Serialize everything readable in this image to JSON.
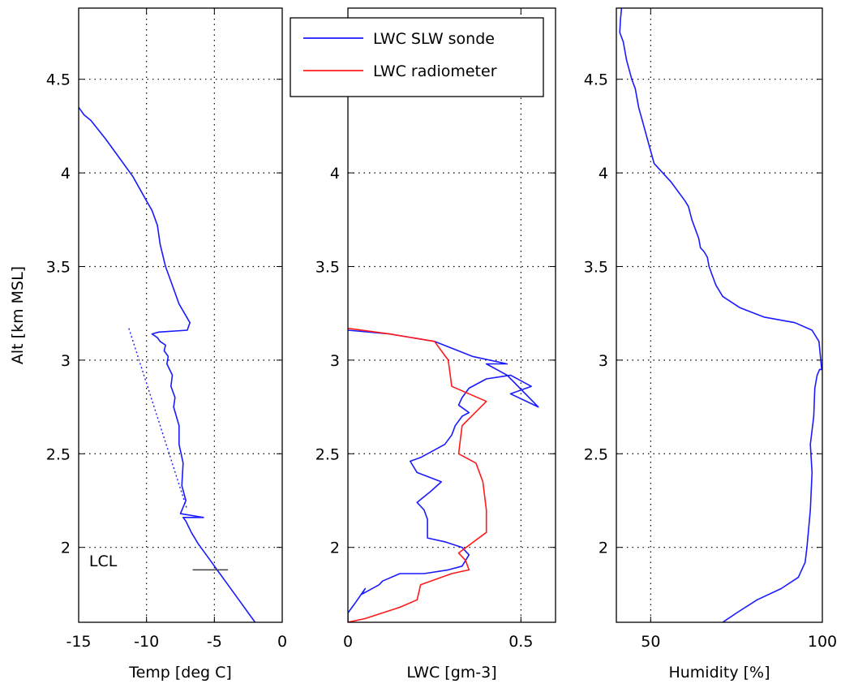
{
  "chart_data": [
    {
      "type": "line",
      "xlabel": "Temp [deg C]",
      "ylabel": "Alt [km MSL]",
      "xlim": [
        -15,
        0
      ],
      "ylim": [
        1.6,
        4.88
      ],
      "xticks": [
        "-15",
        "-10",
        "-5",
        "0"
      ],
      "xtick_values": [
        -15,
        -10,
        -5,
        0
      ],
      "yticks": [
        "2",
        "2.5",
        "3",
        "3.5",
        "4",
        "4.5"
      ],
      "ytick_values": [
        2,
        2.5,
        3,
        3.5,
        4,
        4.5
      ],
      "grid": true,
      "series": [
        {
          "style": "solid",
          "color": "#1a1aff",
          "x": [
            -2.0,
            -2.5,
            -3.2,
            -4.0,
            -4.8,
            -5.5,
            -6.2,
            -6.7,
            -7.1,
            -7.3,
            -5.8,
            -7.5,
            -7.1,
            -7.4,
            -7.3,
            -7.6,
            -7.6,
            -8.0,
            -7.9,
            -8.2,
            -8.1,
            -8.5,
            -8.4,
            -8.7,
            -8.6,
            -9.0,
            -9.2,
            -9.6,
            -9.1,
            -7.0,
            -6.8,
            -7.2,
            -7.6,
            -8.1,
            -8.6,
            -9.0,
            -9.2,
            -9.6,
            -10.0,
            -11.0,
            -12.0,
            -13.0,
            -14.1,
            -14.6,
            -15.0
          ],
          "y": [
            1.6,
            1.65,
            1.72,
            1.8,
            1.88,
            1.95,
            2.02,
            2.08,
            2.14,
            2.16,
            2.16,
            2.18,
            2.25,
            2.33,
            2.45,
            2.55,
            2.65,
            2.75,
            2.8,
            2.86,
            2.92,
            2.98,
            3.02,
            3.05,
            3.08,
            3.1,
            3.12,
            3.14,
            3.15,
            3.16,
            3.2,
            3.25,
            3.3,
            3.4,
            3.5,
            3.62,
            3.72,
            3.8,
            3.85,
            3.98,
            4.08,
            4.18,
            4.28,
            4.31,
            4.35
          ]
        },
        {
          "style": "dotted",
          "color": "#1a1aff",
          "x": [
            -11.3,
            -7.0
          ],
          "y": [
            3.17,
            2.2
          ]
        }
      ],
      "annotations": [
        {
          "text": "LCL",
          "x": -13.2,
          "y": 1.93
        },
        {
          "type": "segment",
          "x": [
            -6.6,
            -4.0
          ],
          "y": [
            1.88,
            1.88
          ],
          "color": "#404040"
        }
      ]
    },
    {
      "type": "line",
      "xlabel": "LWC [gm-3]",
      "ylabel": "",
      "xlim": [
        0,
        0.6
      ],
      "ylim": [
        1.6,
        4.88
      ],
      "xticks": [
        "0",
        "0.5"
      ],
      "xtick_values": [
        0,
        0.5
      ],
      "yticks": [
        "2",
        "2.5",
        "3",
        "3.5",
        "4"
      ],
      "ytick_values": [
        2,
        2.5,
        3,
        3.5,
        4
      ],
      "grid": true,
      "legend": {
        "position": "top-left",
        "entries": [
          "LWC SLW sonde",
          "LWC radiometer"
        ]
      },
      "series": [
        {
          "name": "LWC SLW sonde",
          "color": "#1a1aff",
          "x": [
            0.0,
            0.0,
            0.02,
            0.05,
            0.04,
            0.09,
            0.1,
            0.15,
            0.22,
            0.29,
            0.33,
            0.35,
            0.33,
            0.28,
            0.23,
            0.23,
            0.22,
            0.2,
            0.24,
            0.27,
            0.2,
            0.18,
            0.21,
            0.25,
            0.28,
            0.3,
            0.31,
            0.33,
            0.35,
            0.32,
            0.33,
            0.35,
            0.4,
            0.47,
            0.53,
            0.47,
            0.55,
            0.46,
            0.4,
            0.46,
            0.36,
            0.25,
            0.12,
            0.0
          ],
          "y": [
            1.6,
            1.65,
            1.7,
            1.78,
            1.75,
            1.8,
            1.82,
            1.86,
            1.86,
            1.88,
            1.9,
            1.96,
            2.0,
            2.03,
            2.05,
            2.15,
            2.2,
            2.24,
            2.3,
            2.35,
            2.4,
            2.46,
            2.48,
            2.52,
            2.55,
            2.6,
            2.65,
            2.7,
            2.72,
            2.76,
            2.8,
            2.85,
            2.9,
            2.92,
            2.86,
            2.82,
            2.75,
            2.92,
            2.98,
            2.98,
            3.02,
            3.1,
            3.14,
            3.16
          ]
        },
        {
          "name": "LWC radiometer",
          "color": "#ff1a1a",
          "x": [
            0.0,
            0.05,
            0.15,
            0.2,
            0.21,
            0.3,
            0.35,
            0.34,
            0.32,
            0.4,
            0.4,
            0.39,
            0.37,
            0.32,
            0.33,
            0.4,
            0.3,
            0.29,
            0.25,
            0.12,
            0.0
          ],
          "y": [
            1.6,
            1.62,
            1.68,
            1.72,
            1.8,
            1.86,
            1.88,
            1.93,
            1.97,
            2.08,
            2.2,
            2.35,
            2.45,
            2.5,
            2.65,
            2.78,
            2.86,
            3.0,
            3.1,
            3.14,
            3.17
          ]
        }
      ]
    },
    {
      "type": "line",
      "xlabel": "Humidity [%]",
      "ylabel": "",
      "xlim": [
        40,
        100
      ],
      "ylim": [
        1.6,
        4.88
      ],
      "xticks": [
        "50",
        "100"
      ],
      "xtick_values": [
        50,
        100
      ],
      "yticks": [
        "2",
        "2.5",
        "3",
        "3.5",
        "4",
        "4.5"
      ],
      "ytick_values": [
        2,
        2.5,
        3,
        3.5,
        4,
        4.5
      ],
      "grid": true,
      "series": [
        {
          "color": "#1a1aff",
          "x": [
            71,
            75,
            81,
            88,
            93,
            95,
            95.5,
            96.5,
            97,
            96.5,
            97.5,
            97.8,
            98.5,
            99.2,
            99.8,
            99.0,
            97,
            92,
            83,
            76,
            71,
            69,
            68,
            67,
            66.5,
            65.5,
            64.5,
            64,
            62,
            61,
            60,
            56,
            51,
            49.5,
            48,
            46.5,
            45.5,
            44.5,
            43,
            42,
            41,
            41.2,
            41.5
          ],
          "y": [
            1.6,
            1.65,
            1.72,
            1.78,
            1.84,
            1.92,
            2.0,
            2.2,
            2.4,
            2.55,
            2.7,
            2.85,
            2.92,
            2.95,
            2.95,
            3.1,
            3.16,
            3.2,
            3.23,
            3.28,
            3.34,
            3.4,
            3.45,
            3.5,
            3.55,
            3.58,
            3.6,
            3.65,
            3.75,
            3.82,
            3.85,
            3.95,
            4.05,
            4.15,
            4.25,
            4.35,
            4.45,
            4.5,
            4.6,
            4.7,
            4.75,
            4.82,
            4.88
          ]
        }
      ]
    }
  ]
}
